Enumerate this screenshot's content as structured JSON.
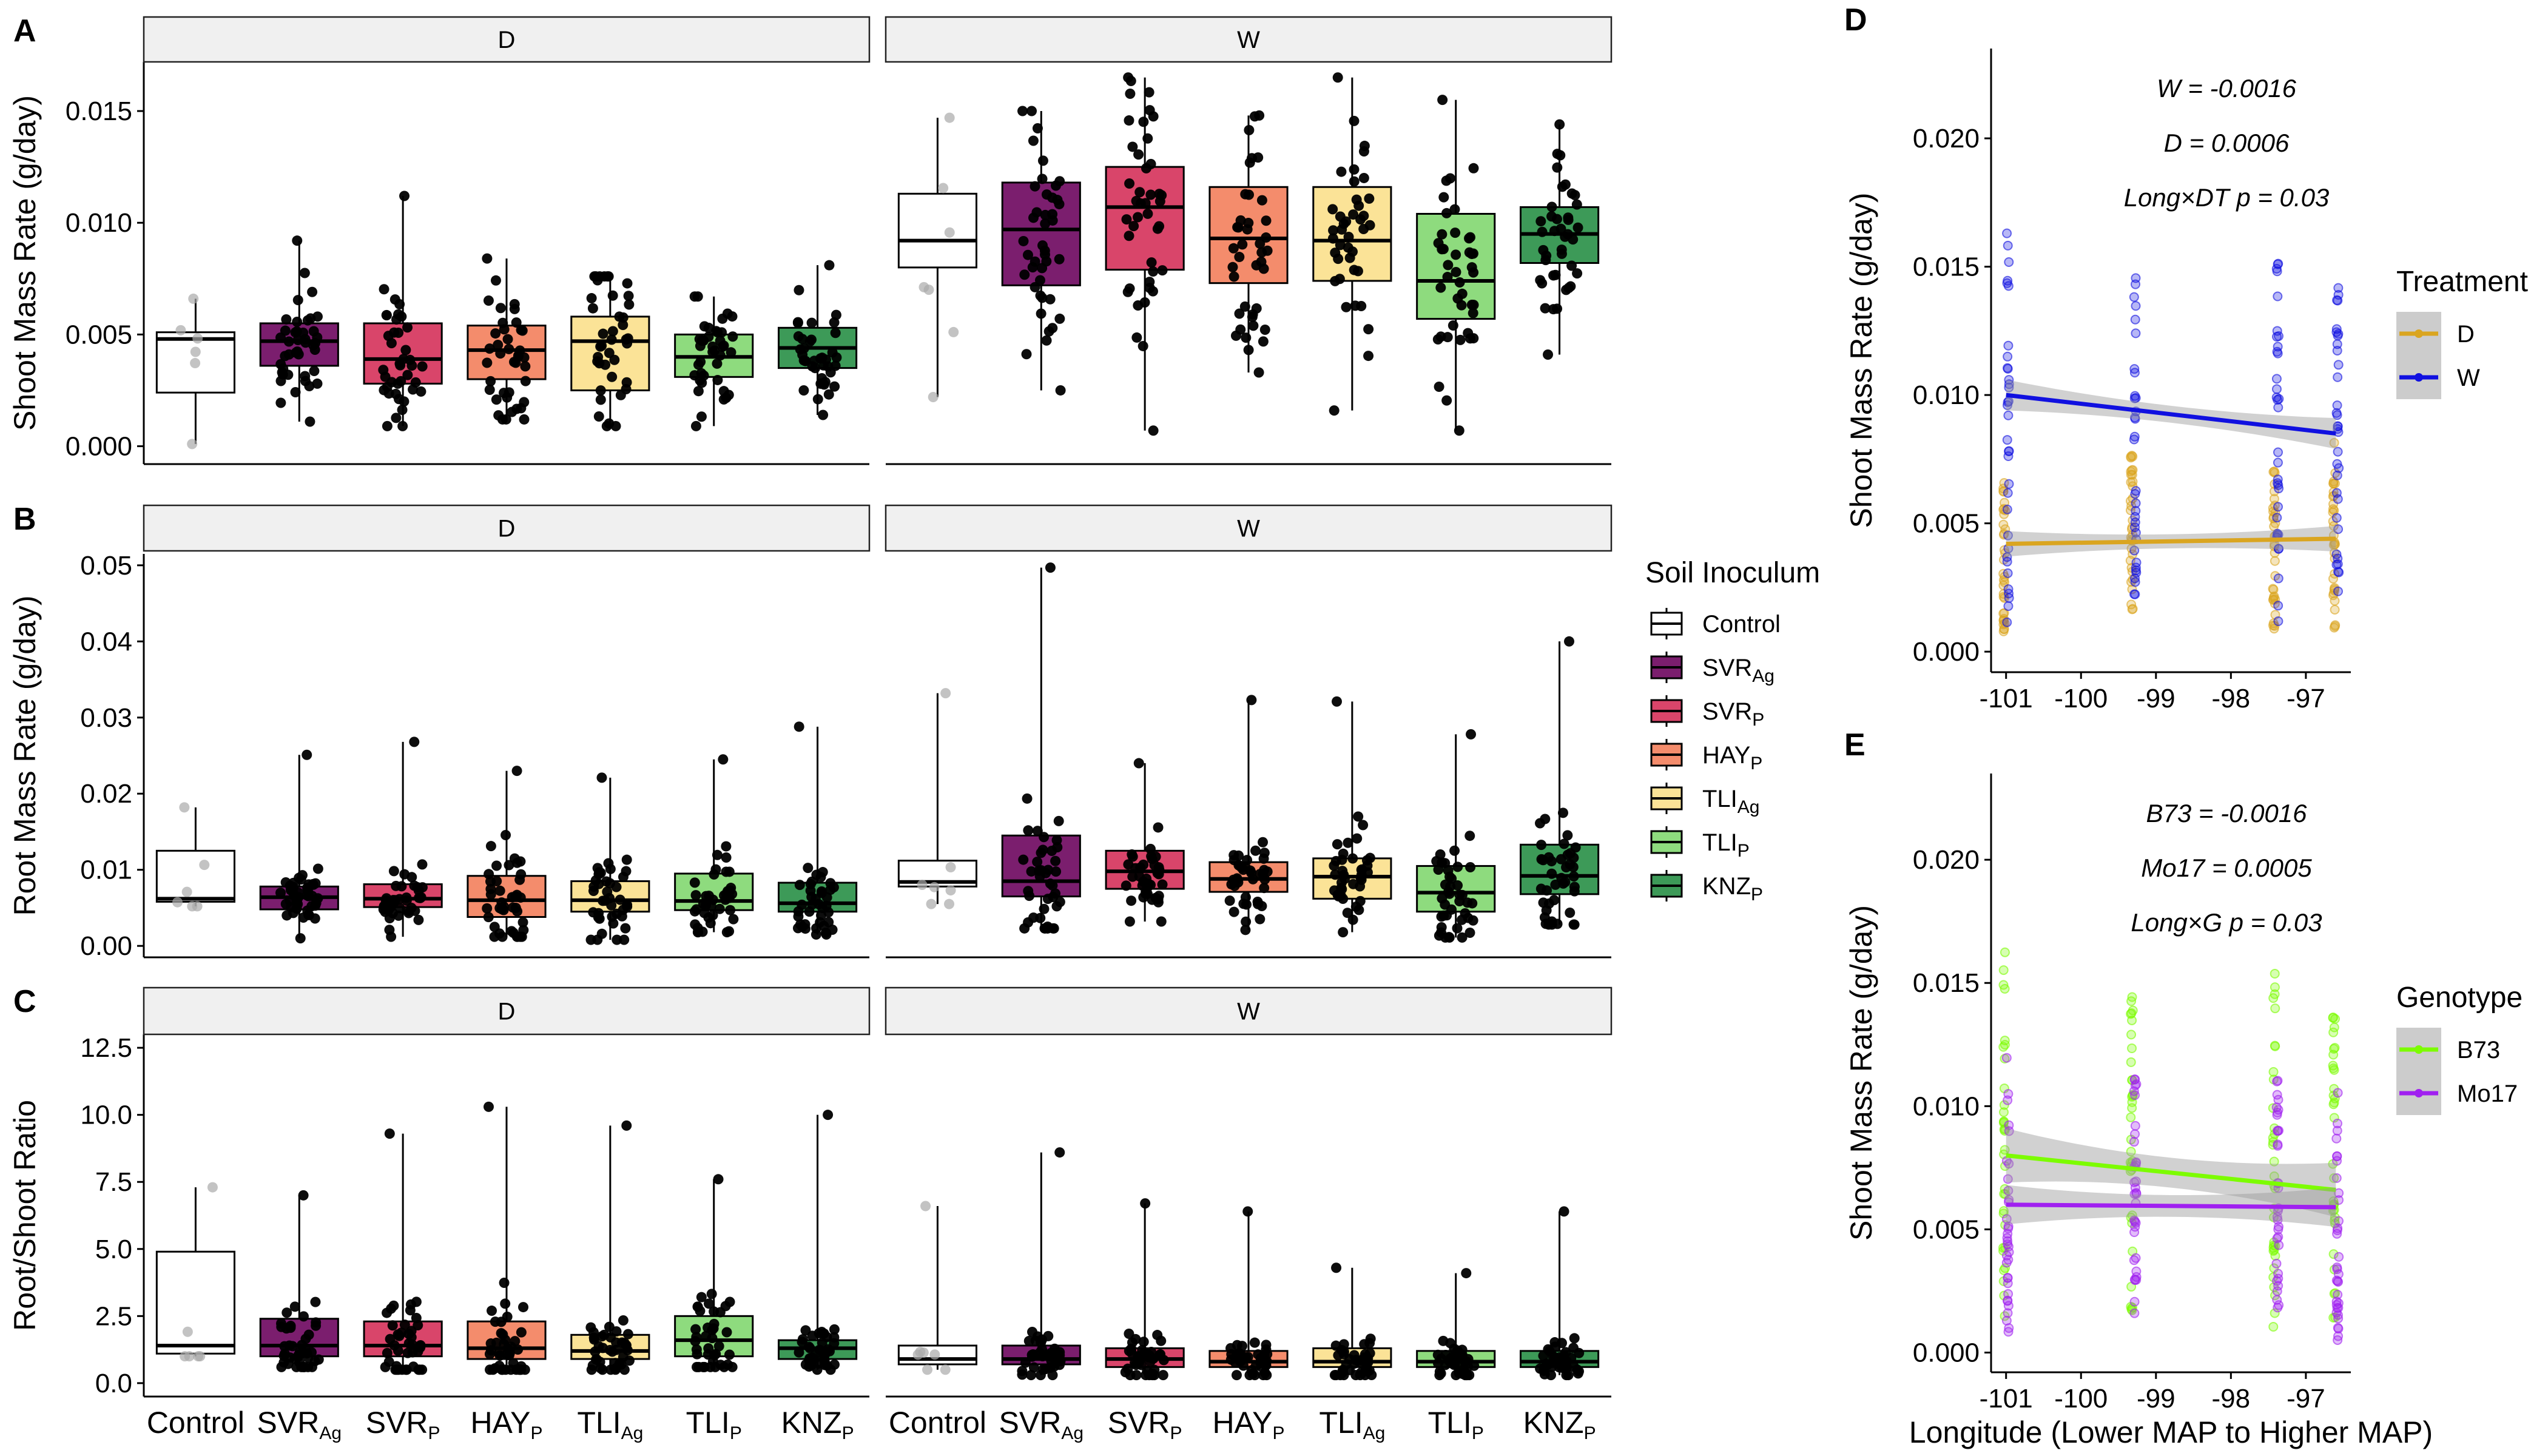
{
  "soil_legend": {
    "title": "Soil Inoculum",
    "items": [
      {
        "base": "Control",
        "sub": "",
        "color": "#ffffff"
      },
      {
        "base": "SVR",
        "sub": "Ag",
        "color": "#7b1e6e"
      },
      {
        "base": "SVR",
        "sub": "P",
        "color": "#d9456a"
      },
      {
        "base": "HAY",
        "sub": "P",
        "color": "#f48c6c"
      },
      {
        "base": "TLI",
        "sub": "Ag",
        "color": "#fbe397"
      },
      {
        "base": "TLI",
        "sub": "P",
        "color": "#8edb7e"
      },
      {
        "base": "KNZ",
        "sub": "P",
        "color": "#3d9a58"
      }
    ]
  },
  "chart_data": [
    {
      "panel": "A",
      "type": "box",
      "facets": [
        "D",
        "W"
      ],
      "ylabel": "Shoot Mass Rate (g/day)",
      "ylim": [
        -0.0008,
        0.0172
      ],
      "yticks": [
        0.0,
        0.005,
        0.01,
        0.015
      ],
      "yticklabels": [
        "0.000",
        "0.005",
        "0.010",
        "0.015"
      ],
      "boxes": {
        "D": [
          {
            "q1": 0.0024,
            "med": 0.0048,
            "q3": 0.0051,
            "lo": 0.0001,
            "hi": 0.0066,
            "n": 6
          },
          {
            "q1": 0.0036,
            "med": 0.0047,
            "q3": 0.0055,
            "lo": 0.0011,
            "hi": 0.0092,
            "n": 42
          },
          {
            "q1": 0.0028,
            "med": 0.0039,
            "q3": 0.0055,
            "lo": 0.0009,
            "hi": 0.0112,
            "n": 40
          },
          {
            "q1": 0.003,
            "med": 0.0043,
            "q3": 0.0054,
            "lo": 0.0012,
            "hi": 0.0084,
            "n": 40
          },
          {
            "q1": 0.0025,
            "med": 0.0047,
            "q3": 0.0058,
            "lo": 0.0009,
            "hi": 0.0076,
            "n": 40
          },
          {
            "q1": 0.0031,
            "med": 0.004,
            "q3": 0.005,
            "lo": 0.0009,
            "hi": 0.0067,
            "n": 40
          },
          {
            "q1": 0.0035,
            "med": 0.0044,
            "q3": 0.0053,
            "lo": 0.0014,
            "hi": 0.0081,
            "n": 40
          }
        ],
        "W": [
          {
            "q1": 0.008,
            "med": 0.0092,
            "q3": 0.0113,
            "lo": 0.0022,
            "hi": 0.0147,
            "n": 7
          },
          {
            "q1": 0.0072,
            "med": 0.0097,
            "q3": 0.0118,
            "lo": 0.0025,
            "hi": 0.015,
            "n": 42
          },
          {
            "q1": 0.0079,
            "med": 0.0107,
            "q3": 0.0125,
            "lo": 0.0007,
            "hi": 0.0165,
            "n": 42
          },
          {
            "q1": 0.0073,
            "med": 0.0093,
            "q3": 0.0116,
            "lo": 0.0033,
            "hi": 0.0148,
            "n": 40
          },
          {
            "q1": 0.0074,
            "med": 0.0092,
            "q3": 0.0116,
            "lo": 0.0016,
            "hi": 0.0165,
            "n": 40
          },
          {
            "q1": 0.0057,
            "med": 0.0074,
            "q3": 0.0104,
            "lo": 0.0007,
            "hi": 0.0155,
            "n": 42
          },
          {
            "q1": 0.0082,
            "med": 0.0095,
            "q3": 0.0107,
            "lo": 0.0041,
            "hi": 0.0144,
            "n": 40
          }
        ]
      }
    },
    {
      "panel": "B",
      "type": "box",
      "facets": [
        "D",
        "W"
      ],
      "ylabel": "Root Mass Rate (g/day)",
      "ylim": [
        -0.0015,
        0.0515
      ],
      "yticks": [
        0.0,
        0.01,
        0.02,
        0.03,
        0.04,
        0.05
      ],
      "yticklabels": [
        "0.00",
        "0.01",
        "0.02",
        "0.03",
        "0.04",
        "0.05"
      ],
      "boxes": {
        "D": [
          {
            "q1": 0.0058,
            "med": 0.0062,
            "q3": 0.0125,
            "lo": 0.0052,
            "hi": 0.0182,
            "n": 6
          },
          {
            "q1": 0.0048,
            "med": 0.0064,
            "q3": 0.0078,
            "lo": 0.001,
            "hi": 0.0251,
            "n": 42
          },
          {
            "q1": 0.0051,
            "med": 0.0062,
            "q3": 0.0081,
            "lo": 0.0012,
            "hi": 0.0268,
            "n": 42
          },
          {
            "q1": 0.0038,
            "med": 0.006,
            "q3": 0.0092,
            "lo": 0.0012,
            "hi": 0.023,
            "n": 42
          },
          {
            "q1": 0.0045,
            "med": 0.006,
            "q3": 0.0085,
            "lo": 0.0008,
            "hi": 0.0221,
            "n": 40
          },
          {
            "q1": 0.0047,
            "med": 0.0059,
            "q3": 0.0095,
            "lo": 0.0018,
            "hi": 0.0245,
            "n": 40
          },
          {
            "q1": 0.0045,
            "med": 0.0056,
            "q3": 0.0083,
            "lo": 0.0015,
            "hi": 0.0288,
            "n": 40
          }
        ],
        "W": [
          {
            "q1": 0.0078,
            "med": 0.0084,
            "q3": 0.0112,
            "lo": 0.0055,
            "hi": 0.0332,
            "n": 7
          },
          {
            "q1": 0.0065,
            "med": 0.0085,
            "q3": 0.0145,
            "lo": 0.0023,
            "hi": 0.0497,
            "n": 42
          },
          {
            "q1": 0.0075,
            "med": 0.0098,
            "q3": 0.0125,
            "lo": 0.0032,
            "hi": 0.024,
            "n": 40
          },
          {
            "q1": 0.0071,
            "med": 0.0088,
            "q3": 0.011,
            "lo": 0.0021,
            "hi": 0.0323,
            "n": 40
          },
          {
            "q1": 0.0062,
            "med": 0.0091,
            "q3": 0.0115,
            "lo": 0.0018,
            "hi": 0.0321,
            "n": 40
          },
          {
            "q1": 0.0045,
            "med": 0.007,
            "q3": 0.0105,
            "lo": 0.0011,
            "hi": 0.0278,
            "n": 42
          },
          {
            "q1": 0.0068,
            "med": 0.0092,
            "q3": 0.0133,
            "lo": 0.0028,
            "hi": 0.04,
            "n": 42
          }
        ]
      }
    },
    {
      "panel": "C",
      "type": "box",
      "facets": [
        "D",
        "W"
      ],
      "ylabel": "Root/Shoot Ratio",
      "ylim": [
        -0.5,
        13.0
      ],
      "yticks": [
        0.0,
        2.5,
        5.0,
        7.5,
        10.0,
        12.5
      ],
      "yticklabels": [
        "0.0",
        "2.5",
        "5.0",
        "7.5",
        "10.0",
        "12.5"
      ],
      "categories": [
        {
          "base": "Control",
          "sub": ""
        },
        {
          "base": "SVR",
          "sub": "Ag"
        },
        {
          "base": "SVR",
          "sub": "P"
        },
        {
          "base": "HAY",
          "sub": "P"
        },
        {
          "base": "TLI",
          "sub": "Ag"
        },
        {
          "base": "TLI",
          "sub": "P"
        },
        {
          "base": "KNZ",
          "sub": "P"
        }
      ],
      "boxes": {
        "D": [
          {
            "q1": 1.1,
            "med": 1.4,
            "q3": 4.9,
            "lo": 1.0,
            "hi": 7.3,
            "n": 6
          },
          {
            "q1": 1.0,
            "med": 1.4,
            "q3": 2.4,
            "lo": 0.6,
            "hi": 7.0,
            "n": 42
          },
          {
            "q1": 1.0,
            "med": 1.4,
            "q3": 2.3,
            "lo": 0.5,
            "hi": 9.3,
            "n": 42
          },
          {
            "q1": 0.9,
            "med": 1.3,
            "q3": 2.3,
            "lo": 0.5,
            "hi": 10.3,
            "n": 42
          },
          {
            "q1": 0.9,
            "med": 1.2,
            "q3": 1.8,
            "lo": 0.5,
            "hi": 9.6,
            "n": 40
          },
          {
            "q1": 1.0,
            "med": 1.6,
            "q3": 2.5,
            "lo": 0.6,
            "hi": 7.6,
            "n": 40
          },
          {
            "q1": 0.9,
            "med": 1.3,
            "q3": 1.6,
            "lo": 0.5,
            "hi": 10.0,
            "n": 40
          }
        ],
        "W": [
          {
            "q1": 0.7,
            "med": 0.9,
            "q3": 1.4,
            "lo": 0.5,
            "hi": 6.6,
            "n": 7
          },
          {
            "q1": 0.7,
            "med": 0.9,
            "q3": 1.4,
            "lo": 0.3,
            "hi": 8.6,
            "n": 42
          },
          {
            "q1": 0.6,
            "med": 0.9,
            "q3": 1.3,
            "lo": 0.3,
            "hi": 6.7,
            "n": 42
          },
          {
            "q1": 0.6,
            "med": 0.8,
            "q3": 1.2,
            "lo": 0.3,
            "hi": 6.4,
            "n": 40
          },
          {
            "q1": 0.6,
            "med": 0.8,
            "q3": 1.3,
            "lo": 0.3,
            "hi": 4.3,
            "n": 40
          },
          {
            "q1": 0.6,
            "med": 0.8,
            "q3": 1.2,
            "lo": 0.3,
            "hi": 4.1,
            "n": 40
          },
          {
            "q1": 0.6,
            "med": 0.8,
            "q3": 1.2,
            "lo": 0.3,
            "hi": 6.4,
            "n": 40
          }
        ]
      }
    },
    {
      "panel": "D",
      "type": "scatter",
      "ylabel": "Shoot Mass Rate (g/day)",
      "xlim": [
        -101.2,
        -96.4
      ],
      "ylim": [
        -0.0008,
        0.0235
      ],
      "xticks": [
        -101,
        -100,
        -99,
        -98,
        -97
      ],
      "xticklabels": [
        "-101",
        "-100",
        "-99",
        "-98",
        "-97"
      ],
      "yticks": [
        0.0,
        0.005,
        0.01,
        0.015,
        0.02
      ],
      "yticklabels": [
        "0.000",
        "0.005",
        "0.010",
        "0.015",
        "0.020"
      ],
      "site_x": [
        -101.0,
        -99.3,
        -97.4,
        -96.6
      ],
      "annotations": [
        "W = -0.0016",
        "D = 0.0006",
        "Long×DT p = 0.03"
      ],
      "legend_title": "Treatment",
      "series": [
        {
          "name": "D",
          "color": "#daa520",
          "fit": [
            [
              -101.0,
              0.0042
            ],
            [
              -96.6,
              0.0044
            ]
          ],
          "se": 0.0005,
          "range_per_site": [
            [
              0.0005,
              0.0066
            ],
            [
              0.0015,
              0.0078
            ],
            [
              0.0008,
              0.0076
            ],
            [
              0.0009,
              0.0082
            ]
          ]
        },
        {
          "name": "W",
          "color": "#1010e0",
          "fit": [
            [
              -101.0,
              0.01
            ],
            [
              -96.6,
              0.0085
            ]
          ],
          "se": 0.0006,
          "range_per_site": [
            [
              0.0008,
              0.0163
            ],
            [
              0.0015,
              0.0147
            ],
            [
              0.001,
              0.0155
            ],
            [
              0.0012,
              0.0145
            ]
          ]
        }
      ]
    },
    {
      "panel": "E",
      "type": "scatter",
      "ylabel": "Shoot Mass Rate (g/day)",
      "xlabel": "Longitude (Lower MAP to Higher MAP)",
      "xlim": [
        -101.2,
        -96.4
      ],
      "ylim": [
        -0.0008,
        0.0235
      ],
      "xticks": [
        -101,
        -100,
        -99,
        -98,
        -97
      ],
      "xticklabels": [
        "-101",
        "-100",
        "-99",
        "-98",
        "-97"
      ],
      "yticks": [
        0.0,
        0.005,
        0.01,
        0.015,
        0.02
      ],
      "yticklabels": [
        "0.000",
        "0.005",
        "0.010",
        "0.015",
        "0.020"
      ],
      "site_x": [
        -101.0,
        -99.3,
        -97.4,
        -96.6
      ],
      "annotations": [
        "B73 = -0.0016",
        "Mo17 = 0.0005",
        "Long×G p = 0.03"
      ],
      "legend_title": "Genotype",
      "series": [
        {
          "name": "B73",
          "color": "#7cfc00",
          "fit": [
            [
              -101.0,
              0.008
            ],
            [
              -96.6,
              0.0066
            ]
          ],
          "se": 0.0011,
          "range_per_site": [
            [
              0.0008,
              0.0165
            ],
            [
              0.0015,
              0.0148
            ],
            [
              0.001,
              0.0155
            ],
            [
              0.0012,
              0.0138
            ]
          ]
        },
        {
          "name": "Mo17",
          "color": "#a020f0",
          "fit": [
            [
              -101.0,
              0.006
            ],
            [
              -96.6,
              0.0059
            ]
          ],
          "se": 0.0008,
          "range_per_site": [
            [
              0.0005,
              0.012
            ],
            [
              0.0015,
              0.0112
            ],
            [
              0.0008,
              0.0115
            ],
            [
              0.0005,
              0.0107
            ]
          ]
        }
      ]
    }
  ]
}
